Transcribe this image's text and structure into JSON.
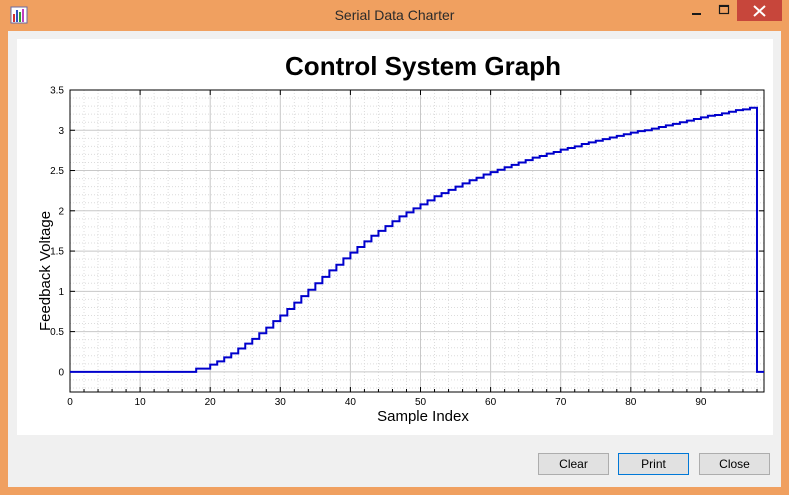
{
  "window": {
    "title": "Serial Data Charter",
    "app_icon": "bar-chart-icon"
  },
  "buttons": {
    "clear": "Clear",
    "print": "Print",
    "close": "Close"
  },
  "chart_data": {
    "type": "line",
    "title": "Control System Graph",
    "xlabel": "Sample Index",
    "ylabel": "Feedback Voltage",
    "xlim": [
      0,
      99
    ],
    "ylim": [
      -0.25,
      3.5
    ],
    "xticks": [
      0,
      10,
      20,
      30,
      40,
      50,
      60,
      70,
      80,
      90
    ],
    "xtick_labels": [
      "0",
      "10",
      "20",
      "30",
      "40",
      "50",
      "60",
      "70",
      "80",
      "90"
    ],
    "yticks": [
      0,
      0.5,
      1,
      1.5,
      2,
      2.5,
      3,
      3.5
    ],
    "ytick_labels": [
      "0",
      "0.5",
      "1",
      "1.5",
      "2",
      "2.5",
      "3",
      "3.5"
    ],
    "grid": true,
    "step": true,
    "series_color": "#0000cc",
    "series": [
      {
        "x": [
          0,
          1,
          2,
          3,
          4,
          5,
          6,
          7,
          8,
          9,
          10,
          11,
          12,
          13,
          14,
          15,
          16,
          17,
          18,
          19,
          20,
          21,
          22,
          23,
          24,
          25,
          26,
          27,
          28,
          29,
          30,
          31,
          32,
          33,
          34,
          35,
          36,
          37,
          38,
          39,
          40,
          41,
          42,
          43,
          44,
          45,
          46,
          47,
          48,
          49,
          50,
          51,
          52,
          53,
          54,
          55,
          56,
          57,
          58,
          59,
          60,
          61,
          62,
          63,
          64,
          65,
          66,
          67,
          68,
          69,
          70,
          71,
          72,
          73,
          74,
          75,
          76,
          77,
          78,
          79,
          80,
          81,
          82,
          83,
          84,
          85,
          86,
          87,
          88,
          89,
          90,
          91,
          92,
          93,
          94,
          95,
          96,
          97,
          98
        ],
        "values": [
          0,
          0,
          0,
          0,
          0,
          0,
          0,
          0,
          0,
          0,
          0,
          0,
          0,
          0,
          0,
          0,
          0,
          0,
          0.04,
          0.04,
          0.09,
          0.13,
          0.18,
          0.23,
          0.29,
          0.35,
          0.41,
          0.48,
          0.55,
          0.63,
          0.7,
          0.78,
          0.86,
          0.94,
          1.02,
          1.1,
          1.18,
          1.26,
          1.33,
          1.41,
          1.48,
          1.55,
          1.62,
          1.69,
          1.75,
          1.81,
          1.87,
          1.93,
          1.98,
          2.03,
          2.08,
          2.13,
          2.18,
          2.22,
          2.26,
          2.3,
          2.34,
          2.38,
          2.41,
          2.45,
          2.48,
          2.51,
          2.54,
          2.57,
          2.6,
          2.63,
          2.66,
          2.68,
          2.71,
          2.73,
          2.76,
          2.78,
          2.8,
          2.83,
          2.85,
          2.87,
          2.89,
          2.91,
          2.93,
          2.95,
          2.97,
          2.99,
          3.0,
          3.02,
          3.04,
          3.06,
          3.08,
          3.1,
          3.12,
          3.14,
          3.16,
          3.18,
          3.19,
          3.21,
          3.23,
          3.25,
          3.26,
          3.28,
          0
        ]
      }
    ]
  }
}
